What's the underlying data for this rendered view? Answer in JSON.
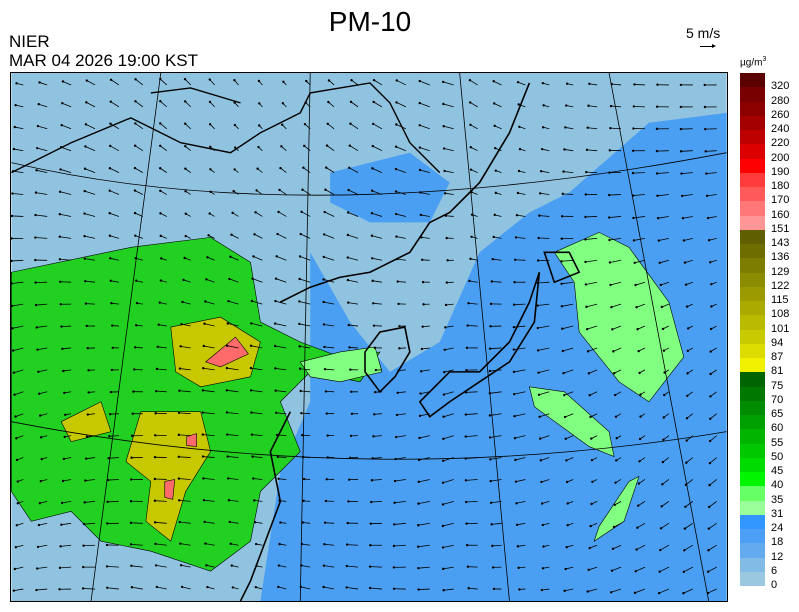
{
  "header": {
    "title": "PM-10",
    "agency": "NIER",
    "datetime": "MAR 04 2026 19:00 KST",
    "wind_scale_label": "5 m/s",
    "unit": "µg/m",
    "unit_sup": "3"
  },
  "legend": {
    "labels": [
      "320",
      "280",
      "260",
      "240",
      "220",
      "200",
      "190",
      "180",
      "170",
      "160",
      "151",
      "143",
      "136",
      "129",
      "122",
      "115",
      "108",
      "101",
      "94",
      "87",
      "81",
      "75",
      "70",
      "65",
      "60",
      "55",
      "50",
      "45",
      "40",
      "35",
      "31",
      "24",
      "18",
      "12",
      "6",
      "0"
    ],
    "colors": [
      "#5a0000",
      "#780000",
      "#8c0000",
      "#a50000",
      "#be0000",
      "#dc0000",
      "#ff0000",
      "#ff3c3c",
      "#ff5a5a",
      "#ff7878",
      "#ff9696",
      "#5f5f00",
      "#6e6e00",
      "#7d7d00",
      "#8c8c00",
      "#9b9b00",
      "#aaaa00",
      "#baba00",
      "#caca00",
      "#dcdc00",
      "#f0f000",
      "#006400",
      "#007800",
      "#008c00",
      "#00a000",
      "#00b400",
      "#00c800",
      "#00dc00",
      "#00f500",
      "#66ff66",
      "#99ff99",
      "#3296ff",
      "#4ba0f5",
      "#64aaee",
      "#82bbe6",
      "#9bc8e1"
    ]
  },
  "map": {
    "colors": {
      "low": "#8fc3e0",
      "sea_mid": "#4b9ff2",
      "green": "#22d022",
      "green_light": "#80ff80",
      "yellow": "#c8c800",
      "red": "#ff6a6a"
    }
  }
}
